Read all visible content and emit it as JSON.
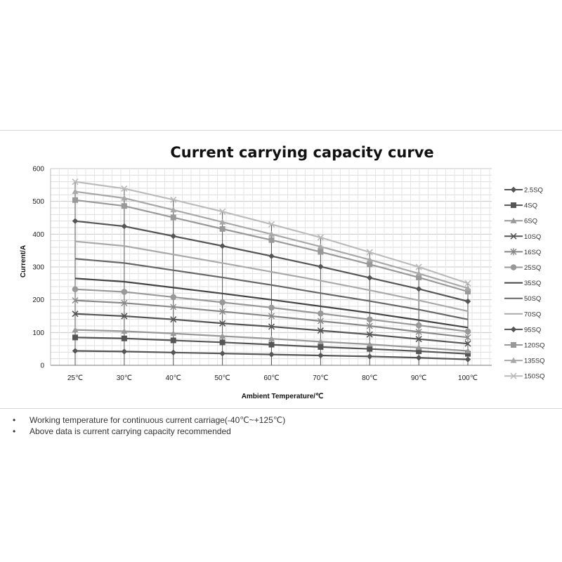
{
  "chart_data": {
    "type": "line",
    "title": "Current carrying capacity curve",
    "xlabel": "Ambient Temperature/℃",
    "ylabel": "Current/A",
    "ylim": [
      0,
      600
    ],
    "yticks": [
      0,
      100,
      200,
      300,
      400,
      500,
      600
    ],
    "grid": true,
    "legend_position": "right",
    "categories": [
      "25℃",
      "30℃",
      "40℃",
      "50℃",
      "60℃",
      "70℃",
      "80℃",
      "90℃",
      "100℃"
    ],
    "series": [
      {
        "name": "2.5SQ",
        "marker": "diamond",
        "color": "#555555",
        "values": [
          44,
          42,
          39,
          36,
          33,
          30,
          27,
          23,
          18
        ]
      },
      {
        "name": "4SQ",
        "marker": "square",
        "color": "#555555",
        "values": [
          85,
          82,
          76,
          70,
          63,
          56,
          50,
          43,
          35
        ]
      },
      {
        "name": "6SQ",
        "marker": "triangle",
        "color": "#999999",
        "values": [
          108,
          104,
          97,
          89,
          81,
          72,
          64,
          54,
          44
        ]
      },
      {
        "name": "10SQ",
        "marker": "x",
        "color": "#555555",
        "values": [
          157,
          150,
          140,
          128,
          118,
          106,
          94,
          80,
          66
        ]
      },
      {
        "name": "16SQ",
        "marker": "star",
        "color": "#888888",
        "values": [
          198,
          190,
          178,
          164,
          150,
          135,
          120,
          102,
          85
        ]
      },
      {
        "name": "25SQ",
        "marker": "circle",
        "color": "#999999",
        "values": [
          232,
          224,
          208,
          192,
          176,
          158,
          140,
          122,
          103
        ]
      },
      {
        "name": "35SQ",
        "marker": "none",
        "color": "#444444",
        "values": [
          265,
          255,
          237,
          219,
          200,
          180,
          160,
          138,
          115
        ]
      },
      {
        "name": "50SQ",
        "marker": "none",
        "color": "#666666",
        "values": [
          325,
          312,
          290,
          268,
          245,
          220,
          196,
          170,
          140
        ]
      },
      {
        "name": "70SQ",
        "marker": "none",
        "color": "#aaaaaa",
        "values": [
          378,
          364,
          338,
          312,
          285,
          258,
          229,
          198,
          165
        ]
      },
      {
        "name": "95SQ",
        "marker": "diamond",
        "color": "#555555",
        "values": [
          440,
          424,
          394,
          364,
          333,
          301,
          267,
          233,
          195
        ]
      },
      {
        "name": "120SQ",
        "marker": "square",
        "color": "#999999",
        "values": [
          504,
          486,
          451,
          416,
          382,
          346,
          308,
          268,
          225
        ]
      },
      {
        "name": "135SQ",
        "marker": "triangle",
        "color": "#a8a8a8",
        "values": [
          530,
          510,
          474,
          437,
          400,
          362,
          322,
          280,
          235
        ]
      },
      {
        "name": "150SQ",
        "marker": "x",
        "color": "#bbbbbb",
        "values": [
          560,
          539,
          505,
          469,
          430,
          390,
          345,
          300,
          250
        ]
      }
    ]
  },
  "notes": [
    "Working temperature for continuous current carriage(-40℃~+125℃)",
    "Above data is current carrying capacity recommended"
  ],
  "bullet": "•"
}
